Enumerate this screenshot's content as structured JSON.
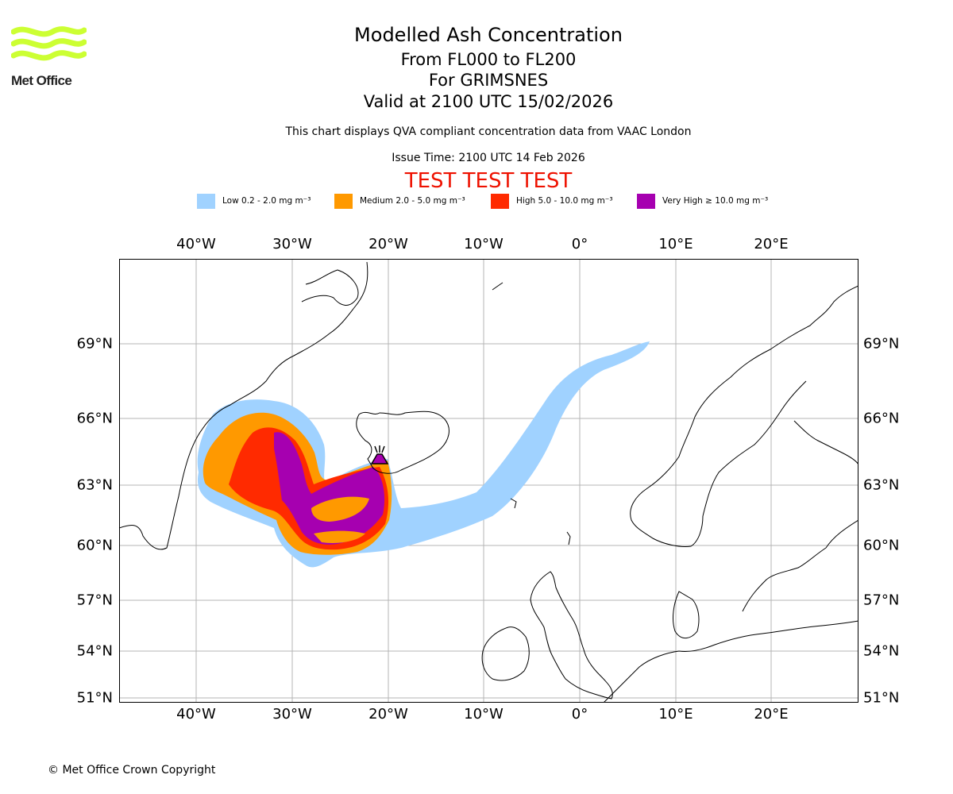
{
  "header": {
    "logo_text": "Met Office",
    "title": "Modelled Ash Concentration",
    "flight_levels": "From FL000 to FL200",
    "volcano_line": "For GRIMSNES",
    "valid_line": "Valid at 2100 UTC 15/02/2026",
    "qva_note": "This chart displays QVA compliant concentration data from VAAC London",
    "issue_time": "Issue Time: 2100 UTC 14 Feb 2026",
    "test_banner": "TEST TEST TEST"
  },
  "colors": {
    "logo": "#ccff33",
    "low": "#a0d2ff",
    "medium": "#ff9900",
    "high": "#ff2a00",
    "very_high": "#a600b0",
    "test_banner": "#ee1100",
    "grid": "#b4b4b4"
  },
  "legend": [
    {
      "label": "Low 0.2 - 2.0 mg m⁻³",
      "color": "#a0d2ff"
    },
    {
      "label": "Medium 2.0 - 5.0 mg m⁻³",
      "color": "#ff9900"
    },
    {
      "label": "High 5.0 - 10.0 mg m⁻³",
      "color": "#ff2a00"
    },
    {
      "label": "Very High  ≥  10.0 mg m⁻³",
      "color": "#a600b0"
    }
  ],
  "map": {
    "lon_labels": [
      "40°W",
      "30°W",
      "20°W",
      "10°W",
      "0°",
      "10°E",
      "20°E"
    ],
    "lat_labels": [
      "69°N",
      "66°N",
      "63°N",
      "60°N",
      "57°N",
      "54°N",
      "51°N"
    ],
    "volcano_marker": "volcano-icon",
    "volcano_name": "GRIMSNES"
  },
  "footer": {
    "copyright": "© Met Office Crown Copyright"
  }
}
